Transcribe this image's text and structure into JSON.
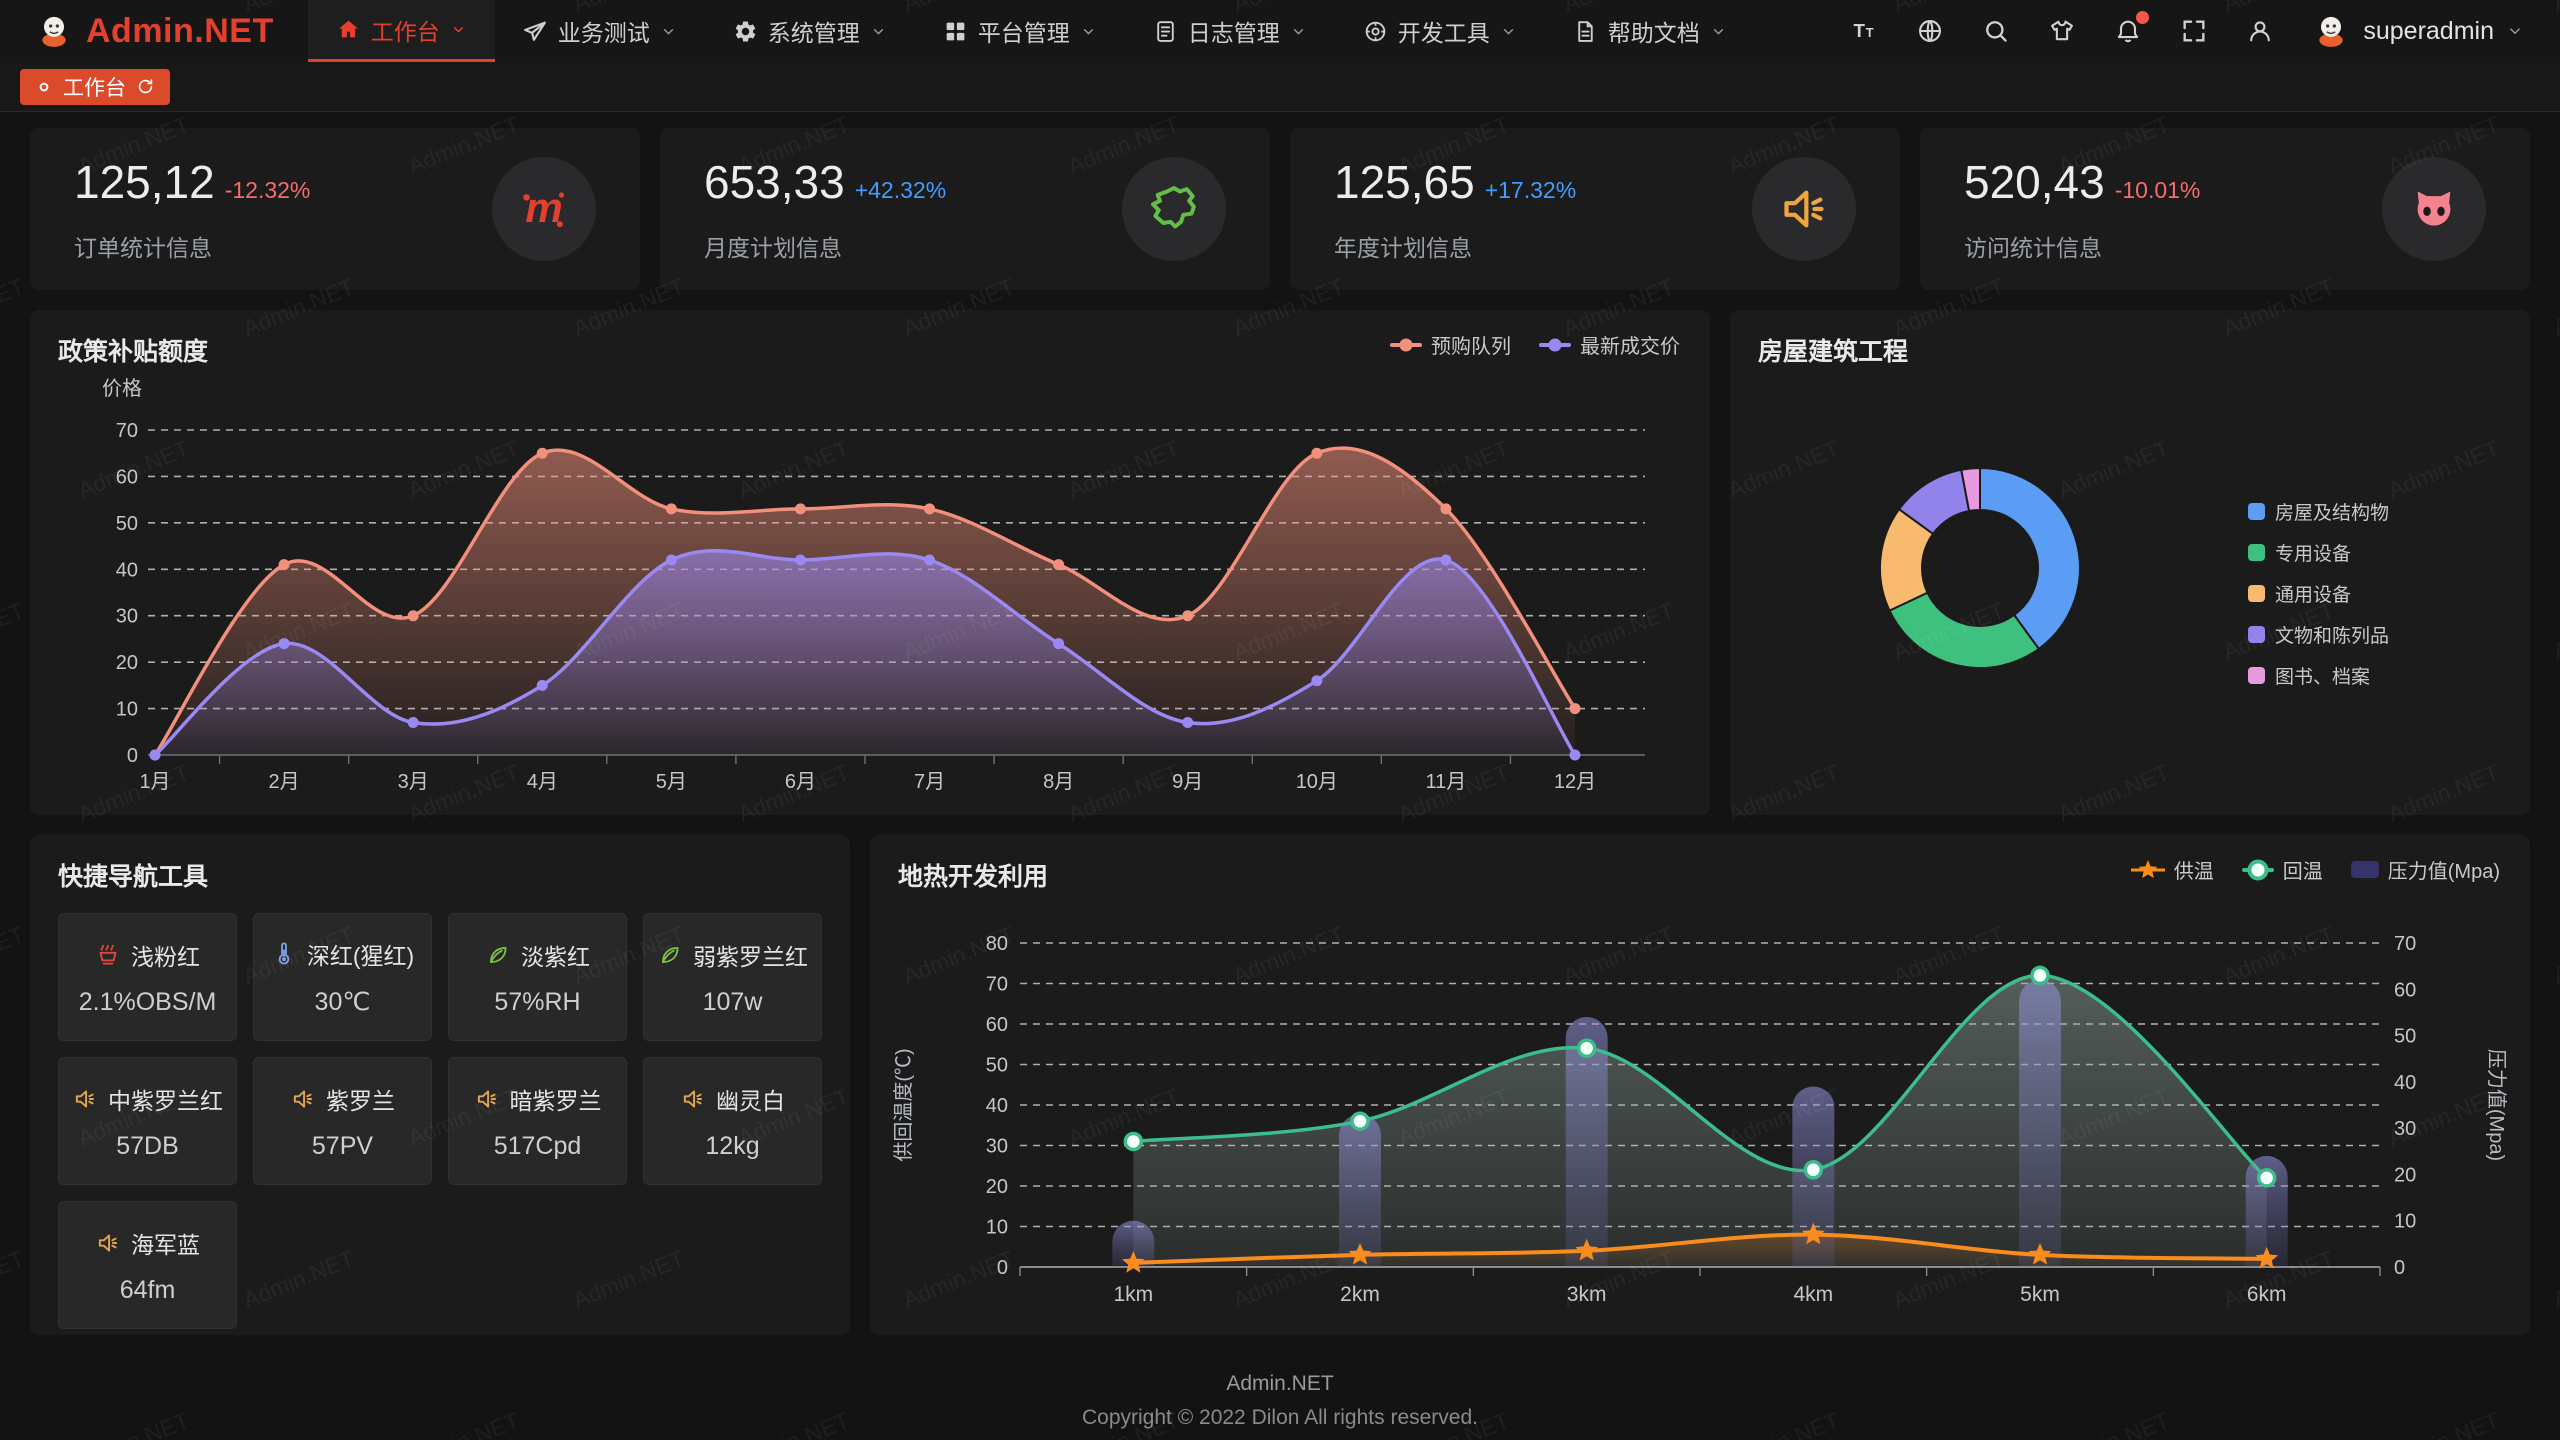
{
  "watermark": "Admin.NET",
  "topnav": {
    "logo": "Admin.NET",
    "menu": [
      {
        "label": "工作台",
        "icon": "home-icon",
        "active": true
      },
      {
        "label": "业务测试",
        "icon": "send-icon",
        "active": false
      },
      {
        "label": "系统管理",
        "icon": "gear-icon",
        "active": false
      },
      {
        "label": "平台管理",
        "icon": "grid-icon",
        "active": false
      },
      {
        "label": "日志管理",
        "icon": "log-icon",
        "active": false
      },
      {
        "label": "开发工具",
        "icon": "tools-icon",
        "active": false
      },
      {
        "label": "帮助文档",
        "icon": "doc-icon",
        "active": false
      }
    ],
    "toolbar": [
      {
        "name": "font-size-icon",
        "badge": false
      },
      {
        "name": "language-icon",
        "badge": false
      },
      {
        "name": "search-icon",
        "badge": false
      },
      {
        "name": "theme-icon",
        "badge": false
      },
      {
        "name": "notification-icon",
        "badge": true
      },
      {
        "name": "fullscreen-icon",
        "badge": false
      },
      {
        "name": "profile-icon",
        "badge": false
      }
    ],
    "user": {
      "name": "superadmin"
    }
  },
  "tabbar": {
    "tabs": [
      {
        "label": "工作台",
        "active": true
      }
    ]
  },
  "colors": {
    "up": "#409EFF",
    "down": "#F56C6C",
    "accent": "#E5402E",
    "badge": "#F5564A"
  },
  "stat_cards": [
    {
      "value": "125,12",
      "delta": "-12.32%",
      "trend": "down",
      "label": "订单统计信息",
      "icon": "meetup-icon",
      "icon_color": "#E5402E"
    },
    {
      "value": "653,33",
      "delta": "+42.32%",
      "trend": "up",
      "label": "月度计划信息",
      "icon": "china-map-icon",
      "icon_color": "#63BE49"
    },
    {
      "value": "125,65",
      "delta": "+17.32%",
      "trend": "up",
      "label": "年度计划信息",
      "icon": "speaker-icon",
      "icon_color": "#EFA63C"
    },
    {
      "value": "520,43",
      "delta": "-10.01%",
      "trend": "down",
      "label": "访问统计信息",
      "icon": "octocat-icon",
      "icon_color": "#F2838F"
    }
  ],
  "chart_data": [
    {
      "id": "subsidy",
      "type": "area",
      "title": "政策补贴额度",
      "ylabel": "价格",
      "ylim": [
        0,
        70
      ],
      "y_ticks": [
        0,
        10,
        20,
        30,
        40,
        50,
        60,
        70
      ],
      "grid": "dashed",
      "legend_position": "top-right",
      "categories": [
        "1月",
        "2月",
        "3月",
        "4月",
        "5月",
        "6月",
        "7月",
        "8月",
        "9月",
        "10月",
        "11月",
        "12月"
      ],
      "series": [
        {
          "name": "预购队列",
          "color": "#F2907B",
          "values": [
            0,
            41,
            30,
            65,
            53,
            53,
            53,
            41,
            30,
            65,
            53,
            10
          ]
        },
        {
          "name": "最新成交价",
          "color": "#9A89F2",
          "values": [
            0,
            24,
            7,
            15,
            42,
            42,
            42,
            24,
            7,
            16,
            42,
            0
          ]
        }
      ]
    },
    {
      "id": "building",
      "type": "pie",
      "title": "房屋建筑工程",
      "legend_position": "right",
      "slices": [
        {
          "label": "房屋及结构物",
          "value": 40,
          "color": "#5B9CF4"
        },
        {
          "label": "专用设备",
          "value": 28,
          "color": "#3EC17E"
        },
        {
          "label": "通用设备",
          "value": 17,
          "color": "#F7BA6F"
        },
        {
          "label": "文物和陈列品",
          "value": 12,
          "color": "#9183EA"
        },
        {
          "label": "图书、档案",
          "value": 3,
          "color": "#E79AE0"
        }
      ]
    },
    {
      "id": "geothermal",
      "type": "line-bar",
      "title": "地热开发利用",
      "categories": [
        "1km",
        "2km",
        "3km",
        "4km",
        "5km",
        "6km"
      ],
      "ylabel_left": "供回温度(℃)",
      "ylabel_right": "压力值(Mpa)",
      "ylim_left": [
        0,
        80
      ],
      "ylim_right": [
        0,
        70
      ],
      "grid": "dashed",
      "legend_position": "top-right",
      "series": [
        {
          "name": "供温",
          "type": "line",
          "marker": "star",
          "axis": "left",
          "color": "#F98C1C",
          "values": [
            1,
            3,
            4,
            8,
            3,
            2
          ]
        },
        {
          "name": "回温",
          "type": "line",
          "marker": "circle",
          "axis": "left",
          "color": "#3CBE8C",
          "values": [
            31,
            36,
            54,
            24,
            72,
            22
          ]
        },
        {
          "name": "压力值(Mpa)",
          "type": "bar",
          "axis": "right",
          "color": "#34336B",
          "values": [
            10,
            33,
            54,
            39,
            62,
            24
          ]
        }
      ]
    }
  ],
  "quick_nav": {
    "title": "快捷导航工具",
    "items": [
      {
        "label": "浅粉红",
        "value": "2.1%OBS/M",
        "icon": "hotspring-icon",
        "icon_color": "#E5443C"
      },
      {
        "label": "深红(猩红)",
        "value": "30℃",
        "icon": "thermometer-icon",
        "icon_color": "#7DA1E8"
      },
      {
        "label": "淡紫红",
        "value": "57%RH",
        "icon": "leaf-icon",
        "icon_color": "#7AC143"
      },
      {
        "label": "弱紫罗兰红",
        "value": "107w",
        "icon": "leaf-icon",
        "icon_color": "#7AC143"
      },
      {
        "label": "中紫罗兰红",
        "value": "57DB",
        "icon": "speaker-icon",
        "icon_color": "#E2A44E"
      },
      {
        "label": "紫罗兰",
        "value": "57PV",
        "icon": "speaker-icon",
        "icon_color": "#E2A44E"
      },
      {
        "label": "暗紫罗兰",
        "value": "517Cpd",
        "icon": "speaker-icon",
        "icon_color": "#E2A44E"
      },
      {
        "label": "幽灵白",
        "value": "12kg",
        "icon": "speaker-icon",
        "icon_color": "#E2A44E"
      },
      {
        "label": "海军蓝",
        "value": "64fm",
        "icon": "speaker-icon",
        "icon_color": "#E2A44E"
      }
    ]
  },
  "footer": {
    "line1": "Admin.NET",
    "line2": "Copyright © 2022 Dilon All rights reserved."
  }
}
